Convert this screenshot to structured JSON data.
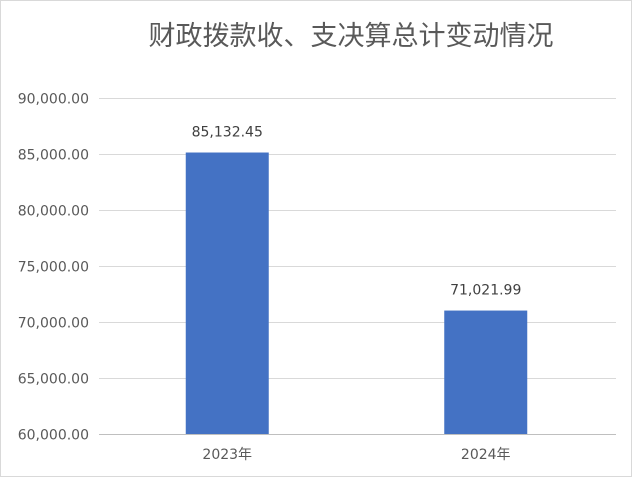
{
  "chart_data": {
    "type": "bar",
    "title": "财政拨款收、支决算总计变动情况",
    "categories": [
      "2023年",
      "2024年"
    ],
    "values": [
      85132.45,
      71021.99
    ],
    "data_labels": [
      "85,132.45",
      "71,021.99"
    ],
    "ylim": [
      60000,
      90000
    ],
    "yticks": [
      "60,000.00",
      "65,000.00",
      "70,000.00",
      "75,000.00",
      "80,000.00",
      "85,000.00",
      "90,000.00"
    ],
    "ytick_values": [
      60000,
      65000,
      70000,
      75000,
      80000,
      85000,
      90000
    ],
    "grid": true,
    "legend": "none",
    "bar_color": "#4472C4"
  }
}
